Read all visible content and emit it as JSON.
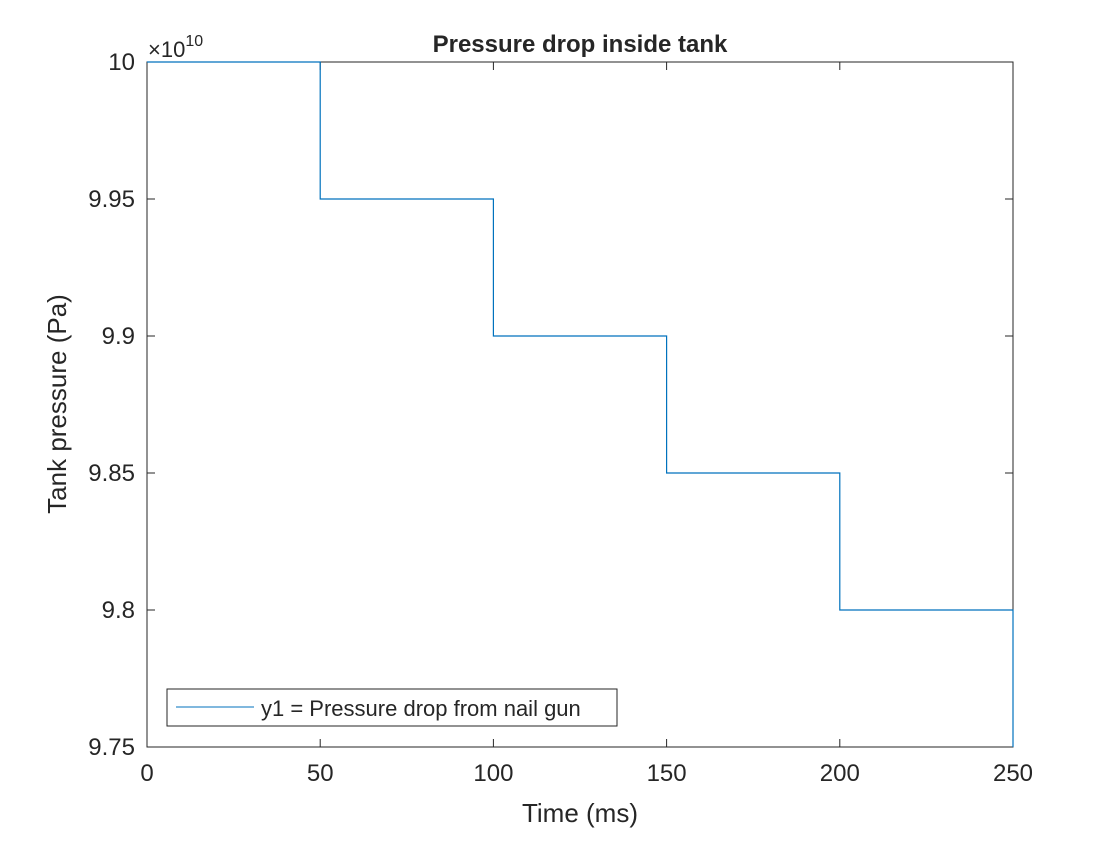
{
  "chart_data": {
    "type": "line",
    "style": "stairs",
    "title": "Pressure drop inside tank",
    "xlabel": "Time (ms)",
    "ylabel": "Tank pressure (Pa)",
    "xlim": [
      0,
      250
    ],
    "ylim": [
      9.75,
      10
    ],
    "y_exponent_base": "10",
    "y_exponent_power": "10",
    "x_ticks": [
      0,
      50,
      100,
      150,
      200,
      250
    ],
    "x_tick_labels": [
      "0",
      "50",
      "100",
      "150",
      "200",
      "250"
    ],
    "y_ticks": [
      9.75,
      9.8,
      9.85,
      9.9,
      9.95,
      10
    ],
    "y_tick_labels": [
      "9.75",
      "9.8",
      "9.85",
      "9.9",
      "9.95",
      "10"
    ],
    "grid": false,
    "legend_position": "bottom-left",
    "series": [
      {
        "name": "y1 = Pressure drop from nail gun",
        "color": "#0072bd",
        "x": [
          0,
          50,
          50,
          100,
          100,
          150,
          150,
          200,
          200,
          250,
          250
        ],
        "y": [
          10,
          10,
          9.95,
          9.95,
          9.9,
          9.9,
          9.85,
          9.85,
          9.8,
          9.8,
          9.75
        ]
      }
    ]
  }
}
